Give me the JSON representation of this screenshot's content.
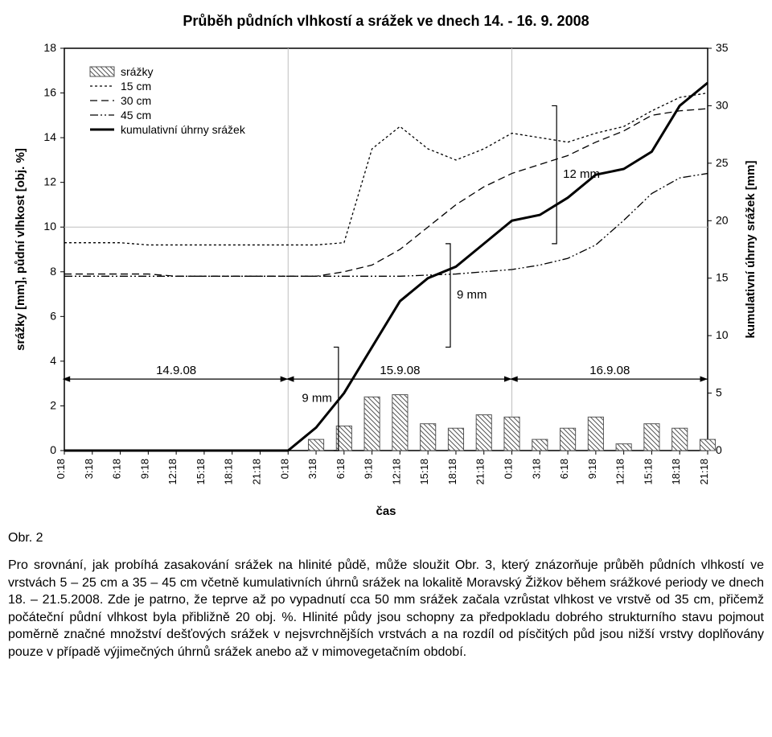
{
  "chart": {
    "type": "line+bar",
    "title": "Průběh půdních vlhkostí a srážek ve dnech 14. - 16. 9. 2008",
    "x_label": "čas",
    "y_left_label": "srážky [mm], půdní vlhkost [obj. %]",
    "y_right_label": "kumulativní úhrny srážek [mm]",
    "y_left": {
      "min": 0,
      "max": 18,
      "step": 2
    },
    "y_right": {
      "min": 0,
      "max": 35,
      "step": 5
    },
    "x_ticks": [
      "0:18",
      "3:18",
      "6:18",
      "9:18",
      "12:18",
      "15:18",
      "18:18",
      "21:18",
      "0:18",
      "3:18",
      "6:18",
      "9:18",
      "12:18",
      "15:18",
      "18:18",
      "21:18",
      "0:18",
      "3:18",
      "6:18",
      "9:18",
      "12:18",
      "15:18",
      "18:18",
      "21:18"
    ],
    "background_color": "#ffffff",
    "grid_color": "#bfbfbf",
    "axis_color": "#000000",
    "legend": {
      "items": [
        {
          "label": "srážky",
          "kind": "bar",
          "pattern": "hatch"
        },
        {
          "label": "15 cm",
          "kind": "line",
          "dash": "3,3",
          "width": 1
        },
        {
          "label": "30 cm",
          "kind": "line",
          "dash": "8,4",
          "width": 1
        },
        {
          "label": "45 cm",
          "kind": "line",
          "dash": "10,3,2,3",
          "width": 1
        },
        {
          "label": "kumulativní úhrny srážek",
          "kind": "line",
          "dash": "",
          "width": 2.5
        }
      ]
    },
    "date_labels": [
      "14.9.08",
      "15.9.08",
      "16.9.08"
    ],
    "annotations": [
      {
        "text": "9 mm",
        "x_idx": 9.3,
        "y_left": 2.3
      },
      {
        "text": "9 mm",
        "x_idx": 13.4,
        "y_left": 7.0
      },
      {
        "text": "12 mm",
        "x_idx": 16.6,
        "y_left": 12.2
      }
    ],
    "bar_values_left": [
      0,
      0,
      0,
      0,
      0,
      0,
      0,
      0,
      0,
      0.5,
      1.1,
      2.4,
      2.5,
      1.2,
      1.0,
      1.6,
      1.5,
      0.5,
      1.0,
      1.5,
      0.3,
      1.2,
      1.0,
      0.5
    ],
    "cumulative_right": [
      0,
      0,
      0,
      0,
      0,
      0,
      0,
      0,
      0,
      2,
      5,
      9,
      13,
      15,
      16,
      18,
      20,
      20.5,
      22,
      24,
      24.5,
      26,
      30,
      32
    ],
    "s15_left": [
      9.3,
      9.3,
      9.3,
      9.2,
      9.2,
      9.2,
      9.2,
      9.2,
      9.2,
      9.2,
      9.3,
      13.5,
      14.5,
      13.5,
      13.0,
      13.5,
      14.2,
      14.0,
      13.8,
      14.2,
      14.5,
      15.2,
      15.8,
      16.0
    ],
    "s30_left": [
      7.9,
      7.9,
      7.9,
      7.9,
      7.8,
      7.8,
      7.8,
      7.8,
      7.8,
      7.8,
      8.0,
      8.3,
      9.0,
      10.0,
      11.0,
      11.8,
      12.4,
      12.8,
      13.2,
      13.8,
      14.3,
      15.0,
      15.2,
      15.3
    ],
    "s45_left": [
      7.8,
      7.8,
      7.8,
      7.8,
      7.8,
      7.8,
      7.8,
      7.8,
      7.8,
      7.8,
      7.8,
      7.8,
      7.8,
      7.85,
      7.9,
      8.0,
      8.1,
      8.3,
      8.6,
      9.2,
      10.3,
      11.5,
      12.2,
      12.4
    ]
  },
  "figure_label": "Obr. 2",
  "paragraph": "Pro srovnání, jak probíhá zasakování srážek na hlinité půdě, může sloužit Obr. 3, který znázorňuje průběh půdních vlhkostí ve vrstvách 5 – 25 cm a 35 – 45 cm včetně kumulativních úhrnů srážek na lokalitě Moravský Žižkov během srážkové periody ve dnech 18. – 21.5.2008. Zde je patrno, že teprve až po vypadnutí cca 50 mm srážek začala vzrůstat vlhkost ve vrstvě od 35 cm, přičemž počáteční půdní vlhkost byla přibližně 20 obj. %. Hlinité půdy jsou schopny za předpokladu dobrého strukturního stavu pojmout poměrně značné množství dešťových srážek v nejsvrchnějších vrstvách a na rozdíl od písčitých půd jsou nižší vrstvy doplňovány pouze v případě výjimečných úhrnů srážek anebo až v mimovegetačním období."
}
